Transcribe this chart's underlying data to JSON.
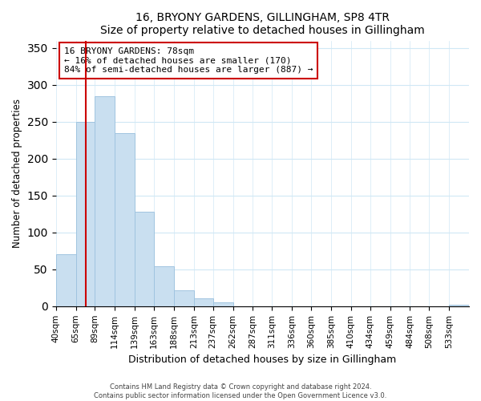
{
  "title": "16, BRYONY GARDENS, GILLINGHAM, SP8 4TR",
  "subtitle": "Size of property relative to detached houses in Gillingham",
  "xlabel": "Distribution of detached houses by size in Gillingham",
  "ylabel": "Number of detached properties",
  "bar_labels": [
    "40sqm",
    "65sqm",
    "89sqm",
    "114sqm",
    "139sqm",
    "163sqm",
    "188sqm",
    "213sqm",
    "237sqm",
    "262sqm",
    "287sqm",
    "311sqm",
    "336sqm",
    "360sqm",
    "385sqm",
    "410sqm",
    "434sqm",
    "459sqm",
    "484sqm",
    "508sqm",
    "533sqm"
  ],
  "bar_heights": [
    70,
    250,
    285,
    235,
    128,
    54,
    22,
    11,
    5,
    0,
    0,
    0,
    0,
    0,
    0,
    0,
    0,
    0,
    0,
    0,
    2
  ],
  "bar_color": "#c9dff0",
  "bar_edge_color": "#a0c4e0",
  "ylim": [
    0,
    360
  ],
  "yticks": [
    0,
    50,
    100,
    150,
    200,
    250,
    300,
    350
  ],
  "red_line_x": 78,
  "red_line_color": "#cc0000",
  "annotation_title": "16 BRYONY GARDENS: 78sqm",
  "annotation_line1": "← 16% of detached houses are smaller (170)",
  "annotation_line2": "84% of semi-detached houses are larger (887) →",
  "annotation_box_color": "#ffffff",
  "annotation_box_edge": "#cc0000",
  "footer_line1": "Contains HM Land Registry data © Crown copyright and database right 2024.",
  "footer_line2": "Contains public sector information licensed under the Open Government Licence v3.0.",
  "bin_edges": [
    40,
    65,
    89,
    114,
    139,
    163,
    188,
    213,
    237,
    262,
    287,
    311,
    336,
    360,
    385,
    410,
    434,
    459,
    484,
    508,
    533,
    558
  ]
}
